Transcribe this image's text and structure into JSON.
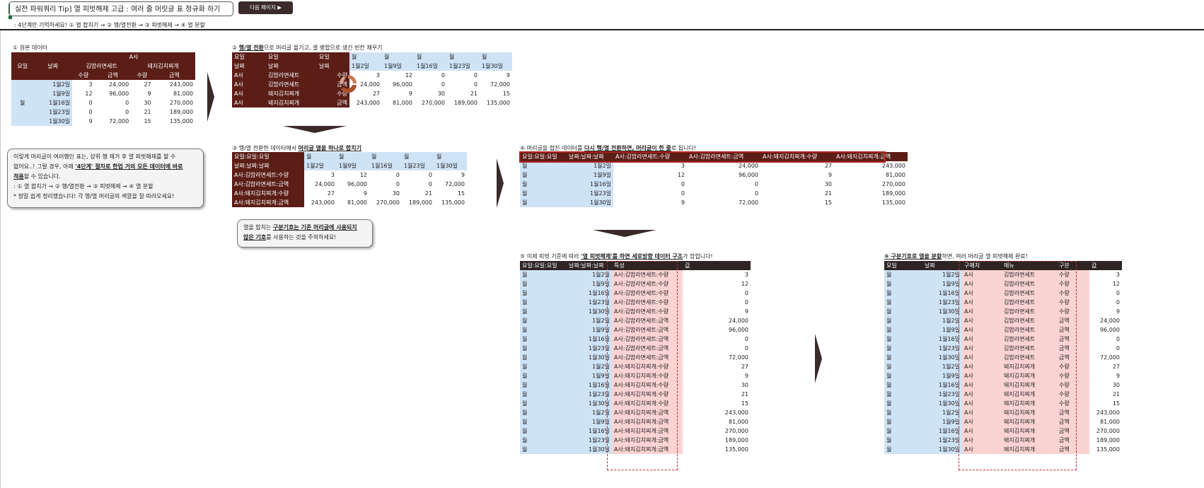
{
  "header": {
    "title": "실전 파워쿼리 Tip] 열 피벗해제 고급 : 여러 줄 머릿글 표 정규화 하기",
    "next_button": "다음 페이지 ▶",
    "subline": ": 4단계만 기억하세요!  ① 열 합치기 → ② 행/열전환 → ③ 피벗해제 → ④ 열 분할"
  },
  "sections": {
    "s1": "① 원본 데이터",
    "s2_pre": "② ",
    "s2_u": "행/열 전환",
    "s2_post": "으로 머리글 옮기고, 셀 병합으로 생긴 빈칸 채우기",
    "s3_pre": "③ 행/열 전환한 데이터에서 ",
    "s3_u": "머리글 열을 하나로 합치기",
    "s4_pre": "④ 머리글을 합친 데이터를 ",
    "s4_u": "다시 행/열 전환하면, 머리글이 한 줄",
    "s4_post": "로 됩니다!",
    "s5_pre": "⑤ 이제 피벗 기준에 따라 ",
    "s5_u": "'열 피벗해제'를 하면 세로방향 데이터 구조",
    "s5_post": "가 잡힙니다!",
    "s6_u": "⑥ 구분기호로 열을 분할",
    "s6_post": "하면, 여러 머리글 열 피벗해제 완료!"
  },
  "notes": {
    "n1_l1": "이렇게 머리글이 여러행인 표는, 상위 행 제거 후 열 피벗해제를 할 수",
    "n1_l2": "없어요..! 그럴 경우, 아래 ",
    "n1_l2u": "'4단계' 절차로 한업 거의 모든 데이터에 바로",
    "n1_l3u": "적용",
    "n1_l3": "할 수 있습니다.",
    "n1_l4": ": ① 열 합치기 → ② 행/열전환 → ③ 피벗해제 → ④ 열 분할",
    "n1_l5": "* 정말 쉽게 정리했습니다! 각 행/열 머리글의 색깔을 잘 따라오세요!",
    "n2_l1a": "열을 합치는 ",
    "n2_l1u": "구분기호는 기존 머리글에 사용되지",
    "n2_l2u": "않은 기호",
    "n2_l2": "를 사용하는 것을 주의하세요!"
  },
  "t1": {
    "h_company": "A사",
    "h_day": "요일",
    "h_date": "날짜",
    "h_m1": "김밥라면세트",
    "h_m2": "돼지김치찌개",
    "h_qty": "수량",
    "h_amt": "금액",
    "day": "월",
    "rows": [
      [
        "1월2일",
        "3",
        "24,000",
        "27",
        "243,000"
      ],
      [
        "1월9일",
        "12",
        "96,000",
        "9",
        "81,000"
      ],
      [
        "1월16일",
        "0",
        "0",
        "30",
        "270,000"
      ],
      [
        "1월23일",
        "0",
        "0",
        "21",
        "189,000"
      ],
      [
        "1월30일",
        "9",
        "72,000",
        "15",
        "135,000"
      ]
    ]
  },
  "t2": {
    "hrow1": [
      "요일",
      "요일",
      "요일",
      "월",
      "월",
      "월",
      "월",
      "월"
    ],
    "hrow2": [
      "날짜",
      "날짜",
      "날짜",
      "1월2일",
      "1월9일",
      "1월16일",
      "1월23일",
      "1월30일"
    ],
    "rows": [
      [
        "A사",
        "김밥라면세트",
        "수량",
        "3",
        "12",
        "0",
        "0",
        "9"
      ],
      [
        "A사",
        "김밥라면세트",
        "금액",
        "24,000",
        "96,000",
        "0",
        "0",
        "72,000"
      ],
      [
        "A사",
        "돼지김치찌개",
        "수량",
        "27",
        "9",
        "30",
        "21",
        "15"
      ],
      [
        "A사",
        "돼지김치찌개",
        "금액",
        "243,000",
        "81,000",
        "270,000",
        "189,000",
        "135,000"
      ]
    ]
  },
  "t3": {
    "hrow1": [
      "요일:요일:요일",
      "월",
      "월",
      "월",
      "월",
      "월"
    ],
    "hrow2": [
      "날짜:날짜:날짜",
      "1월2일",
      "1월9일",
      "1월16일",
      "1월23일",
      "1월30일"
    ],
    "rows": [
      [
        "A사:김밥라면세트:수량",
        "3",
        "12",
        "0",
        "0",
        "9"
      ],
      [
        "A사:김밥라면세트:금액",
        "24,000",
        "96,000",
        "0",
        "0",
        "72,000"
      ],
      [
        "A사:돼지김치찌개:수량",
        "27",
        "9",
        "30",
        "21",
        "15"
      ],
      [
        "A사:돼지김치찌개:금액",
        "243,000",
        "81,000",
        "270,000",
        "189,000",
        "135,000"
      ]
    ]
  },
  "t4": {
    "header": [
      "요일:요일:요일",
      "날짜:날짜:날짜",
      "A사:김밥라면세트:수량",
      "A사:김밥라면세트:금액",
      "A사:돼지김치찌개:수량",
      "A사:돼지김치찌개:금액"
    ],
    "rows": [
      [
        "월",
        "1월2일",
        "3",
        "24,000",
        "27",
        "243,000"
      ],
      [
        "월",
        "1월9일",
        "12",
        "96,000",
        "9",
        "81,000"
      ],
      [
        "월",
        "1월16일",
        "0",
        "0",
        "30",
        "270,000"
      ],
      [
        "월",
        "1월23일",
        "0",
        "0",
        "21",
        "189,000"
      ],
      [
        "월",
        "1월30일",
        "9",
        "72,000",
        "15",
        "135,000"
      ]
    ]
  },
  "t5": {
    "header": [
      "요일:요일:요일",
      "날짜:날짜:날짜",
      "특성",
      "값"
    ],
    "rows": [
      [
        "월",
        "1월2일",
        "A사:김밥라면세트:수량",
        "3"
      ],
      [
        "월",
        "1월9일",
        "A사:김밥라면세트:수량",
        "12"
      ],
      [
        "월",
        "1월16일",
        "A사:김밥라면세트:수량",
        "0"
      ],
      [
        "월",
        "1월23일",
        "A사:김밥라면세트:수량",
        "0"
      ],
      [
        "월",
        "1월30일",
        "A사:김밥라면세트:수량",
        "9"
      ],
      [
        "월",
        "1월2일",
        "A사:김밥라면세트:금액",
        "24,000"
      ],
      [
        "월",
        "1월9일",
        "A사:김밥라면세트:금액",
        "96,000"
      ],
      [
        "월",
        "1월16일",
        "A사:김밥라면세트:금액",
        "0"
      ],
      [
        "월",
        "1월23일",
        "A사:김밥라면세트:금액",
        "0"
      ],
      [
        "월",
        "1월30일",
        "A사:김밥라면세트:금액",
        "72,000"
      ],
      [
        "월",
        "1월2일",
        "A사:돼지김치찌개:수량",
        "27"
      ],
      [
        "월",
        "1월9일",
        "A사:돼지김치찌개:수량",
        "9"
      ],
      [
        "월",
        "1월16일",
        "A사:돼지김치찌개:수량",
        "30"
      ],
      [
        "월",
        "1월23일",
        "A사:돼지김치찌개:수량",
        "21"
      ],
      [
        "월",
        "1월30일",
        "A사:돼지김치찌개:수량",
        "15"
      ],
      [
        "월",
        "1월2일",
        "A사:돼지김치찌개:금액",
        "243,000"
      ],
      [
        "월",
        "1월9일",
        "A사:돼지김치찌개:금액",
        "81,000"
      ],
      [
        "월",
        "1월16일",
        "A사:돼지김치찌개:금액",
        "270,000"
      ],
      [
        "월",
        "1월23일",
        "A사:돼지김치찌개:금액",
        "189,000"
      ],
      [
        "월",
        "1월30일",
        "A사:돼지김치찌개:금액",
        "135,000"
      ]
    ]
  },
  "t6": {
    "header": [
      "요일",
      "날짜",
      "구매처",
      "메뉴",
      "구분",
      "값"
    ],
    "rows": [
      [
        "월",
        "1월2일",
        "A사",
        "김밥라면세트",
        "수량",
        "3"
      ],
      [
        "월",
        "1월9일",
        "A사",
        "김밥라면세트",
        "수량",
        "12"
      ],
      [
        "월",
        "1월16일",
        "A사",
        "김밥라면세트",
        "수량",
        "0"
      ],
      [
        "월",
        "1월23일",
        "A사",
        "김밥라면세트",
        "수량",
        "0"
      ],
      [
        "월",
        "1월30일",
        "A사",
        "김밥라면세트",
        "수량",
        "9"
      ],
      [
        "월",
        "1월2일",
        "A사",
        "김밥라면세트",
        "금액",
        "24,000"
      ],
      [
        "월",
        "1월9일",
        "A사",
        "김밥라면세트",
        "금액",
        "96,000"
      ],
      [
        "월",
        "1월16일",
        "A사",
        "김밥라면세트",
        "금액",
        "0"
      ],
      [
        "월",
        "1월23일",
        "A사",
        "김밥라면세트",
        "금액",
        "0"
      ],
      [
        "월",
        "1월30일",
        "A사",
        "김밥라면세트",
        "금액",
        "72,000"
      ],
      [
        "월",
        "1월2일",
        "A사",
        "돼지김치찌개",
        "수량",
        "27"
      ],
      [
        "월",
        "1월9일",
        "A사",
        "돼지김치찌개",
        "수량",
        "9"
      ],
      [
        "월",
        "1월16일",
        "A사",
        "돼지김치찌개",
        "수량",
        "30"
      ],
      [
        "월",
        "1월23일",
        "A사",
        "돼지김치찌개",
        "수량",
        "21"
      ],
      [
        "월",
        "1월30일",
        "A사",
        "돼지김치찌개",
        "수량",
        "15"
      ],
      [
        "월",
        "1월2일",
        "A사",
        "돼지김치찌개",
        "금액",
        "243,000"
      ],
      [
        "월",
        "1월9일",
        "A사",
        "돼지김치찌개",
        "금액",
        "81,000"
      ],
      [
        "월",
        "1월16일",
        "A사",
        "돼지김치찌개",
        "금액",
        "270,000"
      ],
      [
        "월",
        "1월23일",
        "A사",
        "돼지김치찌개",
        "금액",
        "189,000"
      ],
      [
        "월",
        "1월30일",
        "A사",
        "돼지김치찌개",
        "금액",
        "135,000"
      ]
    ]
  },
  "colors": {
    "header_brown": "#5b1e17",
    "light_blue": "#cfe3f7",
    "dark_header": "#2e2424",
    "pink": "#fbd3d3",
    "dash_red": "#c42b2b"
  }
}
